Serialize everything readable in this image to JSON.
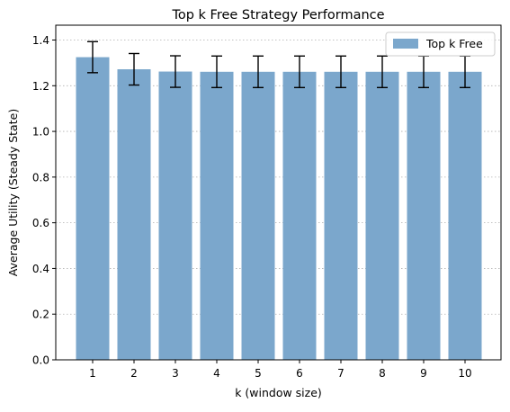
{
  "chart_data": {
    "type": "bar",
    "title": "Top k Free Strategy Performance",
    "xlabel": "k (window size)",
    "ylabel": "Average Utility (Steady State)",
    "categories": [
      "1",
      "2",
      "3",
      "4",
      "5",
      "6",
      "7",
      "8",
      "9",
      "10"
    ],
    "series": [
      {
        "name": "Top k Free",
        "values": [
          1.325,
          1.272,
          1.262,
          1.261,
          1.261,
          1.261,
          1.261,
          1.261,
          1.261,
          1.261
        ],
        "errors": [
          0.068,
          0.069,
          0.069,
          0.069,
          0.069,
          0.069,
          0.069,
          0.069,
          0.069,
          0.069
        ],
        "color": "#7ba7cc"
      }
    ],
    "ylim": [
      0,
      1.465
    ],
    "yticks": [
      "0.0",
      "0.2",
      "0.4",
      "0.6",
      "0.8",
      "1.0",
      "1.2",
      "1.4"
    ],
    "grid": "horizontal dotted",
    "legend_position": "top-right"
  }
}
